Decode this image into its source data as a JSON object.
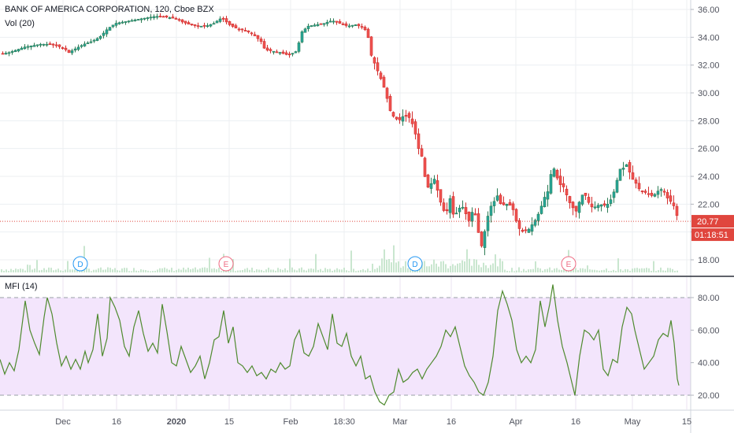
{
  "header": {
    "symbol_title": "BANK OF AMERICA CORPORATION, 120, Cboe BZX",
    "volume_label": "Vol (20)"
  },
  "indicator": {
    "label": "MFI (14)"
  },
  "colors": {
    "up": "#26a69a",
    "up_body": "#2e7d56",
    "down": "#ef5350",
    "down_body": "#d32f2f",
    "mfi_line": "#4e8a2e",
    "mfi_band": "#f3e5fc",
    "last_price_bg": "#e0463e",
    "grid": "#eceff2",
    "axis_text": "#50535e",
    "marker_d": "#2196f3",
    "marker_e": "#ef6a82",
    "volume": "#c9e6cf"
  },
  "chart_data": [
    {
      "type": "candlestick",
      "title": "BANK OF AMERICA CORPORATION, 120, Cboe BZX",
      "y_ticks": [
        "36.00",
        "34.00",
        "32.00",
        "30.00",
        "28.00",
        "26.00",
        "24.00",
        "22.00",
        "20.00",
        "18.00"
      ],
      "ylim": [
        17.2,
        36.5
      ],
      "x_ticks": [
        "Dec",
        "16",
        "2020",
        "15",
        "Feb",
        "18:30",
        "Mar",
        "16",
        "Apr",
        "16",
        "May",
        "15"
      ],
      "last_price": "20.77",
      "countdown": "01:18:51",
      "markers": [
        {
          "label": "D",
          "type": "dividend",
          "date": "Dec"
        },
        {
          "label": "E",
          "type": "earnings",
          "date": "Jan 15"
        },
        {
          "label": "D",
          "type": "dividend",
          "date": "Mar"
        },
        {
          "label": "E",
          "type": "earnings",
          "date": "Apr 15"
        }
      ],
      "close_path": [
        [
          0,
          32.8
        ],
        [
          10,
          32.9
        ],
        [
          20,
          33.1
        ],
        [
          30,
          33.3
        ],
        [
          40,
          33.4
        ],
        [
          50,
          33.5
        ],
        [
          60,
          33.5
        ],
        [
          70,
          33.4
        ],
        [
          80,
          33.2
        ],
        [
          86,
          32.9
        ],
        [
          95,
          33.2
        ],
        [
          105,
          33.5
        ],
        [
          115,
          33.7
        ],
        [
          125,
          34.0
        ],
        [
          135,
          34.6
        ],
        [
          145,
          35.0
        ],
        [
          155,
          35.1
        ],
        [
          165,
          35.2
        ],
        [
          175,
          35.3
        ],
        [
          185,
          35.4
        ],
        [
          195,
          35.5
        ],
        [
          205,
          35.5
        ],
        [
          215,
          35.4
        ],
        [
          225,
          35.3
        ],
        [
          230,
          35.1
        ],
        [
          240,
          34.9
        ],
        [
          250,
          34.8
        ],
        [
          260,
          34.8
        ],
        [
          270,
          35.0
        ],
        [
          280,
          35.4
        ],
        [
          290,
          34.9
        ],
        [
          300,
          34.6
        ],
        [
          310,
          34.5
        ],
        [
          320,
          34.2
        ],
        [
          330,
          33.7
        ],
        [
          335,
          33.1
        ],
        [
          345,
          33.0
        ],
        [
          355,
          32.9
        ],
        [
          365,
          32.7
        ],
        [
          375,
          33.0
        ],
        [
          382,
          34.4
        ],
        [
          390,
          34.8
        ],
        [
          400,
          34.9
        ],
        [
          410,
          35.0
        ],
        [
          420,
          35.2
        ],
        [
          430,
          35.0
        ],
        [
          440,
          34.8
        ],
        [
          450,
          34.9
        ],
        [
          460,
          34.7
        ],
        [
          465,
          34.3
        ],
        [
          470,
          32.7
        ],
        [
          475,
          32.0
        ],
        [
          480,
          31.3
        ],
        [
          485,
          30.6
        ],
        [
          490,
          29.6
        ],
        [
          495,
          28.5
        ],
        [
          500,
          28.2
        ],
        [
          505,
          28.0
        ],
        [
          510,
          28.3
        ],
        [
          515,
          28.4
        ],
        [
          520,
          28.1
        ],
        [
          525,
          27.3
        ],
        [
          530,
          26.0
        ],
        [
          535,
          25.3
        ],
        [
          540,
          23.1
        ],
        [
          545,
          23.4
        ],
        [
          550,
          23.8
        ],
        [
          555,
          22.8
        ],
        [
          560,
          21.7
        ],
        [
          565,
          21.3
        ],
        [
          570,
          22.4
        ],
        [
          575,
          21.0
        ],
        [
          580,
          21.6
        ],
        [
          585,
          21.9
        ],
        [
          590,
          21.3
        ],
        [
          595,
          20.7
        ],
        [
          600,
          21.9
        ],
        [
          605,
          20.2
        ],
        [
          610,
          19.0
        ],
        [
          615,
          20.3
        ],
        [
          620,
          21.7
        ],
        [
          625,
          22.1
        ],
        [
          630,
          22.6
        ],
        [
          635,
          21.9
        ],
        [
          640,
          22.0
        ],
        [
          645,
          22.0
        ],
        [
          650,
          21.6
        ],
        [
          655,
          20.6
        ],
        [
          660,
          20.0
        ],
        [
          665,
          20.1
        ],
        [
          670,
          20.2
        ],
        [
          675,
          20.6
        ],
        [
          680,
          21.0
        ],
        [
          685,
          21.7
        ],
        [
          690,
          22.5
        ],
        [
          695,
          23.0
        ],
        [
          700,
          24.9
        ],
        [
          705,
          24.0
        ],
        [
          710,
          23.4
        ],
        [
          715,
          23.2
        ],
        [
          720,
          22.3
        ],
        [
          725,
          21.8
        ],
        [
          730,
          21.5
        ],
        [
          735,
          22.3
        ],
        [
          740,
          22.9
        ],
        [
          745,
          22.2
        ],
        [
          750,
          21.8
        ],
        [
          755,
          21.8
        ],
        [
          760,
          22.0
        ],
        [
          765,
          21.9
        ],
        [
          770,
          22.0
        ],
        [
          775,
          22.4
        ],
        [
          780,
          23.2
        ],
        [
          785,
          24.5
        ],
        [
          790,
          24.6
        ],
        [
          795,
          24.9
        ],
        [
          800,
          23.9
        ],
        [
          805,
          23.6
        ],
        [
          810,
          23.1
        ],
        [
          815,
          22.9
        ],
        [
          820,
          22.8
        ],
        [
          825,
          22.6
        ],
        [
          830,
          22.7
        ],
        [
          835,
          23.0
        ],
        [
          840,
          23.1
        ],
        [
          845,
          22.5
        ],
        [
          850,
          22.2
        ],
        [
          855,
          21.8
        ],
        [
          860,
          20.77
        ]
      ]
    },
    {
      "type": "line",
      "title": "MFI (14)",
      "y_ticks": [
        "80.00",
        "60.00",
        "40.00",
        "20.00"
      ],
      "ylim": [
        14,
        92
      ],
      "band": [
        20,
        80
      ],
      "series": [
        {
          "values": [
            [
              0,
              42
            ],
            [
              6,
              33
            ],
            [
              12,
              40
            ],
            [
              18,
              35
            ],
            [
              24,
              48
            ],
            [
              32,
              78
            ],
            [
              38,
              60
            ],
            [
              44,
              52
            ],
            [
              50,
              45
            ],
            [
              56,
              68
            ],
            [
              60,
              80
            ],
            [
              66,
              70
            ],
            [
              72,
              52
            ],
            [
              78,
              38
            ],
            [
              84,
              44
            ],
            [
              90,
              36
            ],
            [
              96,
              42
            ],
            [
              102,
              36
            ],
            [
              108,
              47
            ],
            [
              112,
              40
            ],
            [
              118,
              48
            ],
            [
              124,
              70
            ],
            [
              130,
              44
            ],
            [
              136,
              55
            ],
            [
              140,
              80
            ],
            [
              146,
              74
            ],
            [
              152,
              66
            ],
            [
              158,
              50
            ],
            [
              164,
              44
            ],
            [
              170,
              62
            ],
            [
              176,
              72
            ],
            [
              182,
              58
            ],
            [
              188,
              47
            ],
            [
              194,
              52
            ],
            [
              200,
              46
            ],
            [
              206,
              76
            ],
            [
              212,
              59
            ],
            [
              218,
              40
            ],
            [
              224,
              38
            ],
            [
              230,
              50
            ],
            [
              236,
              42
            ],
            [
              242,
              34
            ],
            [
              248,
              38
            ],
            [
              254,
              44
            ],
            [
              260,
              30
            ],
            [
              266,
              40
            ],
            [
              272,
              54
            ],
            [
              278,
              56
            ],
            [
              284,
              72
            ],
            [
              290,
              52
            ],
            [
              296,
              62
            ],
            [
              302,
              40
            ],
            [
              308,
              38
            ],
            [
              314,
              34
            ],
            [
              320,
              38
            ],
            [
              326,
              32
            ],
            [
              332,
              34
            ],
            [
              338,
              30
            ],
            [
              344,
              36
            ],
            [
              350,
              34
            ],
            [
              356,
              40
            ],
            [
              362,
              36
            ],
            [
              368,
              38
            ],
            [
              374,
              54
            ],
            [
              380,
              60
            ],
            [
              386,
              46
            ],
            [
              392,
              44
            ],
            [
              398,
              50
            ],
            [
              404,
              64
            ],
            [
              410,
              56
            ],
            [
              416,
              48
            ],
            [
              422,
              70
            ],
            [
              428,
              52
            ],
            [
              434,
              50
            ],
            [
              440,
              58
            ],
            [
              446,
              44
            ],
            [
              452,
              38
            ],
            [
              458,
              44
            ],
            [
              464,
              30
            ],
            [
              470,
              32
            ],
            [
              476,
              22
            ],
            [
              482,
              16
            ],
            [
              488,
              14
            ],
            [
              494,
              20
            ],
            [
              500,
              22
            ],
            [
              506,
              36
            ],
            [
              512,
              28
            ],
            [
              518,
              30
            ],
            [
              524,
              34
            ],
            [
              530,
              36
            ],
            [
              536,
              30
            ],
            [
              542,
              36
            ],
            [
              548,
              40
            ],
            [
              554,
              44
            ],
            [
              560,
              50
            ],
            [
              566,
              60
            ],
            [
              572,
              56
            ],
            [
              578,
              62
            ],
            [
              584,
              50
            ],
            [
              590,
              38
            ],
            [
              596,
              32
            ],
            [
              602,
              28
            ],
            [
              608,
              22
            ],
            [
              614,
              20
            ],
            [
              620,
              28
            ],
            [
              626,
              44
            ],
            [
              632,
              72
            ],
            [
              638,
              84
            ],
            [
              644,
              76
            ],
            [
              650,
              66
            ],
            [
              656,
              48
            ],
            [
              662,
              40
            ],
            [
              668,
              44
            ],
            [
              674,
              40
            ],
            [
              680,
              48
            ],
            [
              686,
              78
            ],
            [
              692,
              62
            ],
            [
              698,
              76
            ],
            [
              702,
              88
            ],
            [
              708,
              66
            ],
            [
              714,
              50
            ],
            [
              720,
              40
            ],
            [
              726,
              28
            ],
            [
              730,
              20
            ],
            [
              736,
              44
            ],
            [
              742,
              60
            ],
            [
              748,
              58
            ],
            [
              754,
              54
            ],
            [
              760,
              60
            ],
            [
              766,
              36
            ],
            [
              772,
              32
            ],
            [
              778,
              42
            ],
            [
              784,
              40
            ],
            [
              790,
              62
            ],
            [
              796,
              74
            ],
            [
              802,
              70
            ],
            [
              806,
              60
            ],
            [
              812,
              48
            ],
            [
              818,
              36
            ],
            [
              824,
              40
            ],
            [
              830,
              44
            ],
            [
              836,
              54
            ],
            [
              842,
              58
            ],
            [
              848,
              56
            ],
            [
              852,
              66
            ],
            [
              856,
              52
            ],
            [
              860,
              30
            ],
            [
              862,
              26
            ]
          ]
        }
      ]
    }
  ]
}
